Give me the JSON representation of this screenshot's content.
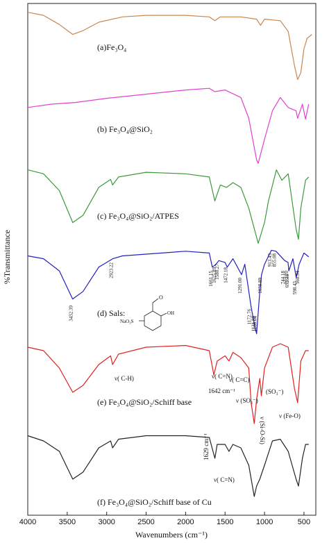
{
  "chart_data": [
    {
      "type": "line",
      "label": "(a)Fe₃O₄",
      "color": "#c8864e",
      "y_label": "%Transmittance",
      "xlim": [
        4000,
        350
      ],
      "ylim": [
        0,
        100
      ],
      "x": [
        4000,
        3800,
        3600,
        3430,
        3300,
        3100,
        2800,
        2500,
        2000,
        1700,
        1630,
        1560,
        1300,
        1100,
        1050,
        1000,
        800,
        700,
        620,
        580,
        540,
        500,
        460,
        400
      ],
      "values": [
        93,
        89,
        77,
        64,
        69,
        80,
        87,
        89,
        89,
        87,
        82,
        87,
        87,
        84,
        76,
        84,
        82,
        68,
        23,
        5,
        14,
        45,
        59,
        64
      ]
    },
    {
      "type": "line",
      "label": "(b) Fe₃O₄@SiO₂",
      "color": "#e040d0",
      "xlim": [
        4000,
        350
      ],
      "ylim": [
        0,
        100
      ],
      "x": [
        4000,
        3700,
        3400,
        3000,
        2500,
        2000,
        1700,
        1630,
        1500,
        1300,
        1200,
        1100,
        1080,
        1000,
        900,
        800,
        700,
        600,
        580,
        520,
        480,
        440
      ],
      "values": [
        71,
        75,
        77,
        82,
        87,
        92,
        94,
        90,
        92,
        83,
        58,
        8,
        4,
        33,
        67,
        83,
        71,
        67,
        58,
        75,
        57,
        75
      ]
    },
    {
      "type": "line",
      "label": "(c) Fe₃O₄@SiO₂/ATPES",
      "color": "#3a9a3a",
      "xlim": [
        4000,
        350
      ],
      "ylim": [
        0,
        100
      ],
      "x": [
        4000,
        3800,
        3600,
        3430,
        3300,
        3100,
        2950,
        2925,
        2850,
        2500,
        2000,
        1700,
        1630,
        1560,
        1480,
        1400,
        1300,
        1200,
        1080,
        1000,
        950,
        850,
        780,
        700,
        600,
        570,
        540,
        480,
        440
      ],
      "values": [
        96,
        91,
        70,
        30,
        39,
        74,
        84,
        77,
        87,
        93,
        91,
        87,
        57,
        77,
        74,
        80,
        74,
        48,
        4,
        30,
        57,
        96,
        83,
        91,
        22,
        9,
        48,
        83,
        87
      ]
    },
    {
      "type": "line",
      "label": "(d) Sals:",
      "color": "#2020c0",
      "xlim": [
        4000,
        350
      ],
      "ylim": [
        0,
        100
      ],
      "structure_labels": [
        "NaO₃S",
        "O",
        "OH"
      ],
      "x": [
        4000,
        3800,
        3600,
        3432,
        3300,
        3100,
        2923,
        2800,
        2000,
        1700,
        1661,
        1615,
        1580,
        1500,
        1472,
        1400,
        1291,
        1250,
        1172,
        1125,
        1100,
        1060,
        1038,
        1000,
        913,
        855,
        744,
        702,
        692,
        640,
        598,
        561,
        500,
        440
      ],
      "values": [
        90,
        87,
        74,
        44,
        52,
        78,
        87,
        90,
        95,
        93,
        78,
        81,
        85,
        83,
        78,
        87,
        70,
        81,
        37,
        15,
        7,
        52,
        70,
        81,
        96,
        95,
        85,
        83,
        74,
        87,
        67,
        81,
        93,
        89
      ],
      "annotations": [
        "3432.39",
        "2923.22",
        "1661.15",
        "1615.89",
        "1580.27",
        "1472.18",
        "1291.00",
        "1172.76",
        "1121.88",
        "1100.04",
        "1038.89",
        "913.43",
        "855.08",
        "744.18",
        "702.20",
        "692.38",
        "598.43",
        "560.94"
      ]
    },
    {
      "type": "line",
      "label": "(e) Fe₃O₄@SiO₂/Schiff base",
      "color": "#e02020",
      "xlim": [
        4000,
        350
      ],
      "ylim": [
        0,
        100
      ],
      "x": [
        4000,
        3800,
        3600,
        3430,
        3300,
        3100,
        2950,
        2925,
        2850,
        2500,
        2000,
        1700,
        1642,
        1600,
        1500,
        1450,
        1400,
        1300,
        1200,
        1170,
        1130,
        1100,
        1060,
        1040,
        1000,
        900,
        800,
        700,
        620,
        580,
        540,
        480,
        440
      ],
      "values": [
        92,
        88,
        68,
        40,
        48,
        72,
        82,
        72,
        84,
        92,
        94,
        88,
        60,
        76,
        82,
        76,
        86,
        80,
        68,
        28,
        4,
        32,
        56,
        36,
        68,
        92,
        96,
        92,
        44,
        28,
        76,
        88,
        88
      ],
      "annotations": [
        "ν( C-H)",
        "ν( C=N)",
        "1642 cm⁻¹",
        "ν( C=C)",
        "ν (SO₃⁻)",
        "ν (Si-O-Si)",
        "(SO₃⁻)",
        "ν (Fe-O)"
      ]
    },
    {
      "type": "line",
      "label": "(f) Fe₃O₄@SiO₂/Schiff base of Cu",
      "color": "#222222",
      "xlim": [
        4000,
        350
      ],
      "ylim": [
        0,
        100
      ],
      "x_label": "Wavenumbers (cm⁻¹)",
      "xticks": [
        4000,
        3500,
        3000,
        2500,
        2000,
        1500,
        1000,
        500
      ],
      "x": [
        4000,
        3800,
        3600,
        3430,
        3300,
        3100,
        2950,
        2925,
        2850,
        2500,
        2000,
        1700,
        1629,
        1600,
        1500,
        1450,
        1400,
        1300,
        1200,
        1130,
        1100,
        1060,
        1000,
        900,
        800,
        700,
        600,
        570,
        520,
        480,
        440
      ],
      "values": [
        90,
        84,
        72,
        40,
        48,
        76,
        84,
        76,
        86,
        90,
        90,
        88,
        64,
        80,
        80,
        72,
        80,
        76,
        56,
        20,
        32,
        40,
        56,
        84,
        86,
        72,
        40,
        32,
        64,
        80,
        80
      ],
      "annotations": [
        "1629 cm⁻¹",
        "ν( C=N)"
      ]
    }
  ]
}
